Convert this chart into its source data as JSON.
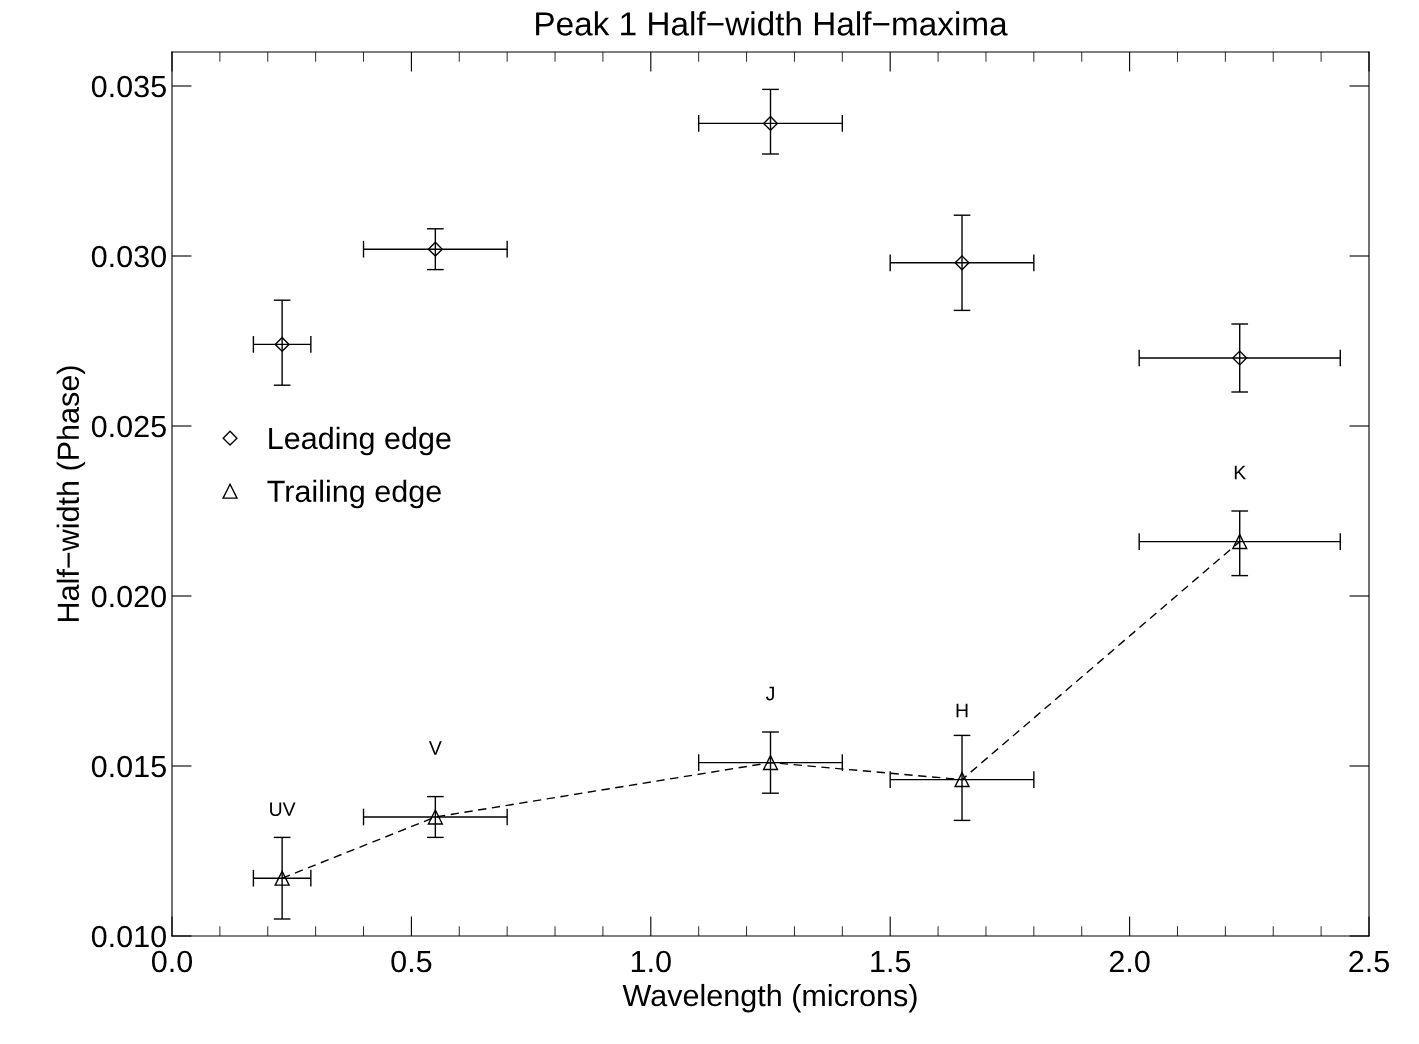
{
  "chart_data": {
    "type": "scatter",
    "title": "Peak 1 Half−width Half−maxima",
    "xlabel": "Wavelength (microns)",
    "ylabel": "Half−width (Phase)",
    "xlim": [
      0.0,
      2.5
    ],
    "xticks": [
      {
        "value": 0.0,
        "label": "0.0"
      },
      {
        "value": 0.5,
        "label": "0.5"
      },
      {
        "value": 1.0,
        "label": "1.0"
      },
      {
        "value": 1.5,
        "label": "1.5"
      },
      {
        "value": 2.0,
        "label": "2.0"
      },
      {
        "value": 2.5,
        "label": "2.5"
      }
    ],
    "ylim": [
      0.01,
      0.036
    ],
    "yticks": [
      {
        "value": 0.01,
        "label": "0.010"
      },
      {
        "value": 0.015,
        "label": "0.015"
      },
      {
        "value": 0.02,
        "label": "0.020"
      },
      {
        "value": 0.025,
        "label": "0.025"
      },
      {
        "value": 0.03,
        "label": "0.030"
      },
      {
        "value": 0.035,
        "label": "0.035"
      }
    ],
    "grid": false,
    "legend": "left",
    "series": [
      {
        "name": "Leading edge",
        "color": "#000000",
        "marker": "diamond",
        "line_style": "none",
        "x": [
          0.23,
          0.55,
          1.25,
          1.65,
          2.23
        ],
        "values": [
          0.0274,
          0.0302,
          0.0339,
          0.0298,
          0.027
        ],
        "errors": [
          [
            0.0262,
            0.0287
          ],
          [
            0.0296,
            0.0308
          ],
          [
            0.033,
            0.0349
          ],
          [
            0.0284,
            0.0312
          ],
          [
            0.026,
            0.028
          ]
        ],
        "xerrors": [
          [
            0.17,
            0.29
          ],
          [
            0.4,
            0.7
          ],
          [
            1.1,
            1.4
          ],
          [
            1.5,
            1.8
          ],
          [
            2.02,
            2.44
          ]
        ]
      },
      {
        "name": "Trailing edge",
        "type": "line",
        "color": "#000000",
        "marker": "triangle",
        "line_style": "dashed",
        "x": [
          0.23,
          0.55,
          1.25,
          1.65,
          2.23
        ],
        "values": [
          0.0117,
          0.0135,
          0.0151,
          0.0146,
          0.0216
        ],
        "errors": [
          [
            0.0105,
            0.0129
          ],
          [
            0.0129,
            0.0141
          ],
          [
            0.0142,
            0.016
          ],
          [
            0.0134,
            0.0159
          ],
          [
            0.0206,
            0.0225
          ]
        ],
        "xerrors": [
          [
            0.17,
            0.29
          ],
          [
            0.4,
            0.7
          ],
          [
            1.1,
            1.4
          ],
          [
            1.5,
            1.8
          ],
          [
            2.02,
            2.44
          ]
        ]
      }
    ],
    "annotations": [
      "UV",
      "V",
      "J",
      "H",
      "K"
    ]
  }
}
